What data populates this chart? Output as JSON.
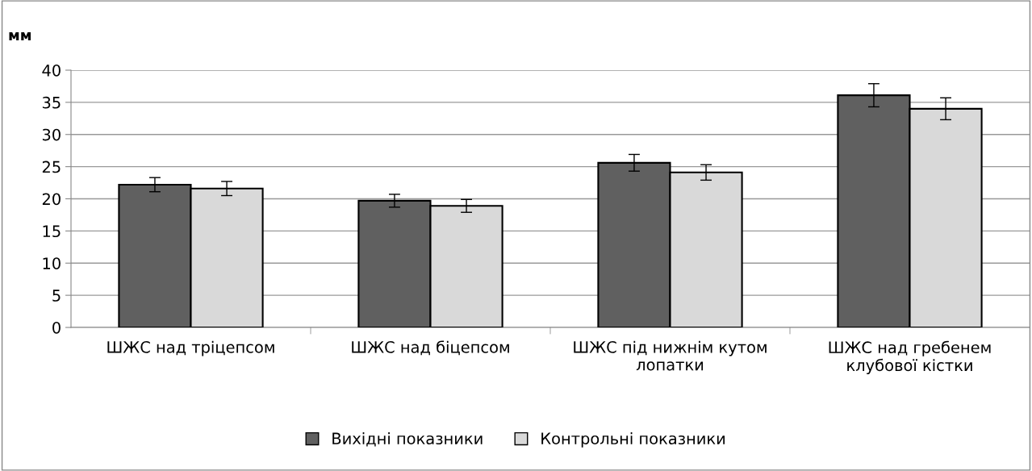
{
  "chart_data": {
    "type": "bar",
    "ylabel": "мм",
    "categories": [
      "ШЖС над тріцепсом",
      "ШЖС над біцепсом",
      "ШЖС під нижнім кутом лопатки",
      "ШЖС над гребенем клубової кістки"
    ],
    "series": [
      {
        "name": "Вихідні показники",
        "color": "#606060",
        "values": [
          22.2,
          19.7,
          25.6,
          36.1
        ],
        "errors": [
          1.1,
          1.0,
          1.3,
          1.8
        ]
      },
      {
        "name": "Контрольні показники",
        "color": "#d9d9d9",
        "values": [
          21.6,
          18.9,
          24.1,
          34.0
        ],
        "errors": [
          1.1,
          1.0,
          1.2,
          1.7
        ]
      }
    ],
    "ylim": [
      0,
      40
    ],
    "yticks": [
      0,
      5,
      10,
      15,
      20,
      25,
      30,
      35,
      40
    ],
    "grid": "y",
    "legend": "bottom"
  }
}
